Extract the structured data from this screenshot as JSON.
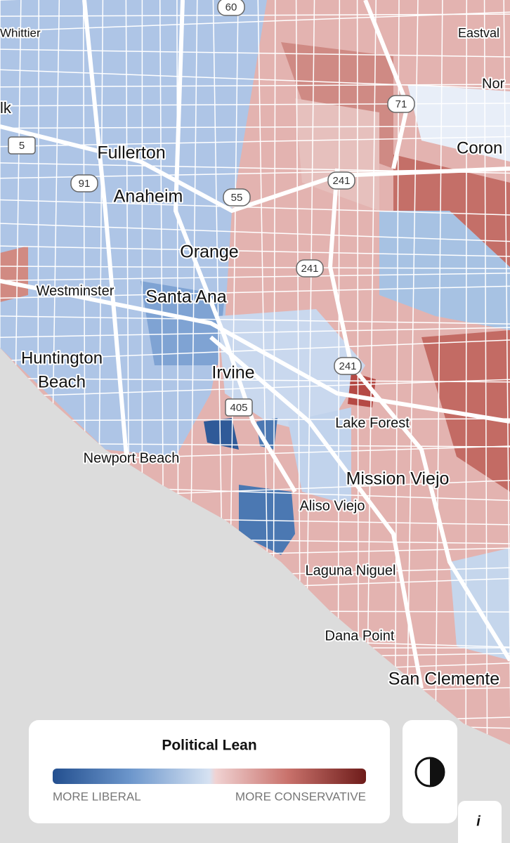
{
  "map": {
    "places": [
      "Whittier",
      "lk",
      "Eastval",
      "Nor",
      "Coron",
      "Fullerton",
      "Anaheim",
      "Orange",
      "Westminster",
      "Santa Ana",
      "Huntington",
      "Beach",
      "Irvine",
      "Lake Forest",
      "Newport Beach",
      "Mission Viejo",
      "Aliso Viejo",
      "Laguna Niguel",
      "Dana Point",
      "San Clemente"
    ],
    "highway_shields": [
      "60",
      "71",
      "5",
      "91",
      "55",
      "241",
      "241",
      "241",
      "405"
    ]
  },
  "legend": {
    "title": "Political Lean",
    "low_label": "MORE LIBERAL",
    "high_label": "MORE CONSERVATIVE"
  },
  "buttons": {
    "info": "i"
  }
}
